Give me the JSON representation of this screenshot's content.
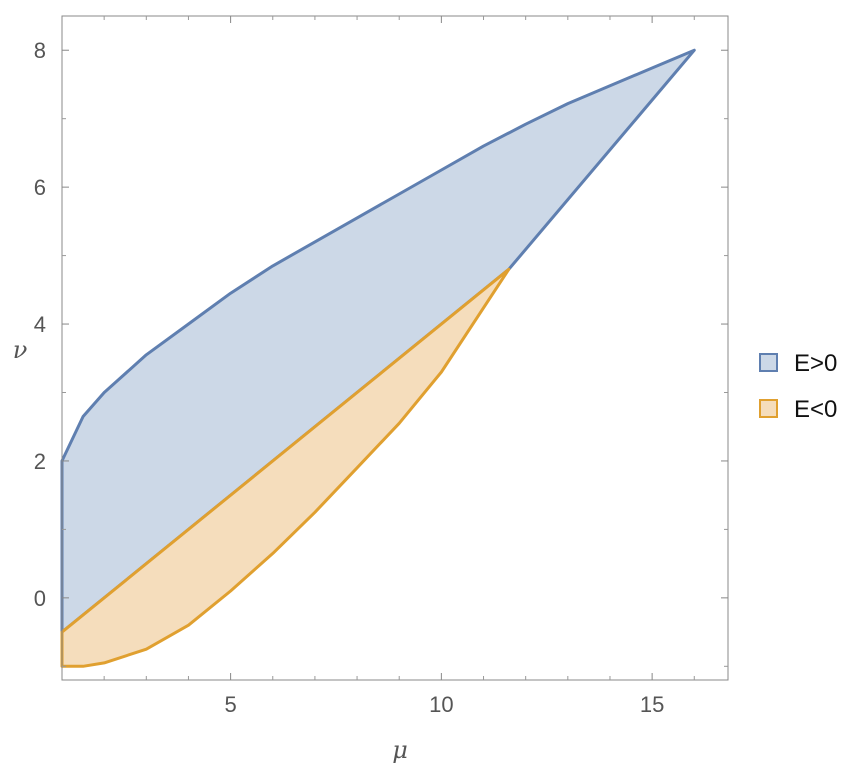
{
  "chart_data": {
    "type": "area",
    "xlabel": "μ",
    "ylabel": "ν",
    "xlim": [
      1,
      16.8
    ],
    "ylim": [
      -1.2,
      8.5
    ],
    "x_ticks": [
      {
        "value": 5,
        "label": "5"
      },
      {
        "value": 10,
        "label": "10"
      },
      {
        "value": 15,
        "label": "15"
      }
    ],
    "y_ticks": [
      {
        "value": 0,
        "label": "0"
      },
      {
        "value": 2,
        "label": "2"
      },
      {
        "value": 4,
        "label": "4"
      },
      {
        "value": 6,
        "label": "6"
      },
      {
        "value": 8,
        "label": "8"
      }
    ],
    "grid": false,
    "legend_position": "right",
    "series": [
      {
        "name": "E>0",
        "stroke": "#5f7fb0",
        "fill": "#ccd8e7",
        "boundary": [
          [
            1.0,
            2.0
          ],
          [
            1.5,
            2.65
          ],
          [
            2,
            3.0
          ],
          [
            3,
            3.55
          ],
          [
            4,
            4.0
          ],
          [
            5,
            4.45
          ],
          [
            6,
            4.85
          ],
          [
            7,
            5.2
          ],
          [
            8,
            5.55
          ],
          [
            9,
            5.9
          ],
          [
            10,
            6.25
          ],
          [
            11,
            6.6
          ],
          [
            12,
            6.92
          ],
          [
            13,
            7.22
          ],
          [
            14,
            7.48
          ],
          [
            15,
            7.74
          ],
          [
            16,
            8.0
          ],
          [
            11.6,
            4.8
          ],
          [
            1.0,
            -0.5
          ]
        ]
      },
      {
        "name": "E<0",
        "stroke": "#e0a030",
        "fill": "#f5ddbc",
        "boundary": [
          [
            1.0,
            -0.5
          ],
          [
            11.6,
            4.8
          ],
          [
            10,
            3.3
          ],
          [
            9,
            2.55
          ],
          [
            8,
            1.9
          ],
          [
            7,
            1.25
          ],
          [
            6,
            0.65
          ],
          [
            5,
            0.1
          ],
          [
            4,
            -0.4
          ],
          [
            3,
            -0.75
          ],
          [
            2,
            -0.95
          ],
          [
            1.5,
            -1.0
          ],
          [
            1.0,
            -1.0
          ]
        ]
      }
    ],
    "legend": [
      {
        "label": "E>0",
        "stroke": "#5f7fb0",
        "fill": "#ccd8e7"
      },
      {
        "label": "E<0",
        "stroke": "#e0a030",
        "fill": "#f5ddbc"
      }
    ]
  }
}
